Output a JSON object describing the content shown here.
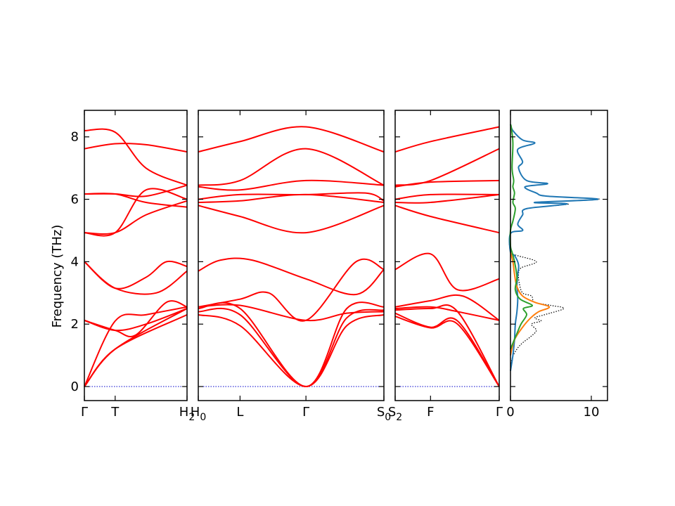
{
  "chart_data": [
    {
      "type": "line",
      "panel": "band-structure",
      "ylabel": "Frequency (THz)",
      "ylim": [
        -0.45,
        8.85
      ],
      "yticks": [
        0,
        2,
        4,
        6,
        8
      ],
      "band_color": "#ff0000",
      "zero_line_color": "#0000cc",
      "segments": [
        {
          "labels": [
            "Γ",
            "T",
            "H2"
          ],
          "label_positions": [
            0,
            0.3,
            1.0
          ],
          "xlim": [
            0,
            1
          ],
          "bands": [
            {
              "x": [
                0,
                0.3,
                1.0
              ],
              "y": [
                0,
                1.2,
                2.3
              ]
            },
            {
              "x": [
                0,
                0.3,
                1.0
              ],
              "y": [
                0,
                1.2,
                2.5
              ]
            },
            {
              "x": [
                0,
                0.3,
                0.6,
                1.0
              ],
              "y": [
                0,
                2.1,
                2.3,
                2.55
              ]
            },
            {
              "x": [
                0,
                0.3,
                0.5,
                0.8,
                1.0
              ],
              "y": [
                2.12,
                1.8,
                1.65,
                2.7,
                2.55
              ]
            },
            {
              "x": [
                0,
                0.3,
                0.6,
                1.0
              ],
              "y": [
                2.12,
                1.8,
                2.0,
                2.5
              ]
            },
            {
              "x": [
                0,
                0.3,
                0.7,
                1.0
              ],
              "y": [
                4.0,
                3.15,
                3.0,
                3.7
              ]
            },
            {
              "x": [
                0,
                0.3,
                0.6,
                0.8,
                1.0
              ],
              "y": [
                4.0,
                3.15,
                3.5,
                4.0,
                3.85
              ]
            },
            {
              "x": [
                0,
                0.3,
                0.6,
                1.0
              ],
              "y": [
                4.93,
                4.93,
                5.5,
                5.95
              ]
            },
            {
              "x": [
                0,
                0.3,
                0.6,
                1.0
              ],
              "y": [
                4.93,
                4.93,
                6.3,
                6.0
              ]
            },
            {
              "x": [
                0,
                0.3,
                0.6,
                1.0
              ],
              "y": [
                6.17,
                6.17,
                5.9,
                5.75
              ]
            },
            {
              "x": [
                0,
                0.3,
                0.6,
                1.0
              ],
              "y": [
                6.17,
                6.17,
                6.1,
                6.45
              ]
            },
            {
              "x": [
                0,
                0.3,
                0.6,
                1.0
              ],
              "y": [
                7.62,
                7.78,
                7.75,
                7.52
              ]
            },
            {
              "x": [
                0,
                0.3,
                0.6,
                1.0
              ],
              "y": [
                8.2,
                8.15,
                7.0,
                6.45
              ]
            }
          ]
        },
        {
          "labels": [
            "H0",
            "L",
            "Γ",
            "S0"
          ],
          "label_positions": [
            0,
            0.225,
            0.58,
            1.0
          ],
          "xlim": [
            0,
            1
          ],
          "bands": [
            {
              "x": [
                0,
                0.225,
                0.58,
                0.8,
                1.0
              ],
              "y": [
                2.3,
                1.95,
                0,
                1.95,
                2.3
              ]
            },
            {
              "x": [
                0,
                0.225,
                0.58,
                0.8,
                1.0
              ],
              "y": [
                2.4,
                2.3,
                0,
                2.2,
                2.45
              ]
            },
            {
              "x": [
                0,
                0.225,
                0.58,
                0.8,
                1.0
              ],
              "y": [
                2.5,
                2.5,
                0,
                2.5,
                2.55
              ]
            },
            {
              "x": [
                0,
                0.225,
                0.58,
                0.8,
                1.0
              ],
              "y": [
                2.55,
                2.6,
                2.12,
                2.35,
                2.4
              ]
            },
            {
              "x": [
                0,
                0.225,
                0.38,
                0.58,
                0.85,
                1.0
              ],
              "y": [
                2.55,
                2.8,
                3.0,
                2.12,
                4.0,
                3.75
              ]
            },
            {
              "x": [
                0,
                0.12,
                0.29,
                0.58,
                0.85,
                1.0
              ],
              "y": [
                3.7,
                4.05,
                4.05,
                3.45,
                2.95,
                3.75
              ]
            },
            {
              "x": [
                0,
                0.225,
                0.58,
                1.0
              ],
              "y": [
                5.8,
                5.45,
                4.93,
                5.8
              ]
            },
            {
              "x": [
                0,
                0.225,
                0.58,
                1.0
              ],
              "y": [
                5.9,
                5.95,
                6.15,
                5.9
              ]
            },
            {
              "x": [
                0,
                0.225,
                0.58,
                0.9,
                1.0
              ],
              "y": [
                6.0,
                6.15,
                6.15,
                6.2,
                5.95
              ]
            },
            {
              "x": [
                0,
                0.225,
                0.58,
                1.0
              ],
              "y": [
                6.4,
                6.3,
                6.6,
                6.45
              ]
            },
            {
              "x": [
                0,
                0.225,
                0.58,
                1.0
              ],
              "y": [
                6.45,
                6.6,
                7.62,
                6.45
              ]
            },
            {
              "x": [
                0,
                0.225,
                0.58,
                1.0
              ],
              "y": [
                7.52,
                7.85,
                8.32,
                7.52
              ]
            }
          ]
        },
        {
          "labels": [
            "S2",
            "F",
            "Γ"
          ],
          "label_positions": [
            0,
            0.34,
            1.0
          ],
          "xlim": [
            0,
            1
          ],
          "bands": [
            {
              "x": [
                0,
                0.34,
                0.6,
                1.0
              ],
              "y": [
                2.25,
                1.88,
                2.0,
                0
              ]
            },
            {
              "x": [
                0,
                0.34,
                0.6,
                1.0
              ],
              "y": [
                2.35,
                1.9,
                2.1,
                0
              ]
            },
            {
              "x": [
                0,
                0.34,
                0.6,
                1.0
              ],
              "y": [
                2.45,
                2.5,
                2.4,
                0
              ]
            },
            {
              "x": [
                0,
                0.34,
                0.6,
                1.0
              ],
              "y": [
                2.5,
                2.55,
                2.4,
                2.12
              ]
            },
            {
              "x": [
                0,
                0.34,
                0.65,
                1.0
              ],
              "y": [
                2.55,
                2.75,
                2.9,
                2.12
              ]
            },
            {
              "x": [
                0,
                0.34,
                0.6,
                1.0
              ],
              "y": [
                3.75,
                4.25,
                3.1,
                3.45
              ]
            },
            {
              "x": [
                0,
                0.34,
                1.0
              ],
              "y": [
                5.8,
                5.45,
                4.93
              ]
            },
            {
              "x": [
                0,
                0.34,
                1.0
              ],
              "y": [
                5.9,
                5.9,
                6.15
              ]
            },
            {
              "x": [
                0,
                0.34,
                1.0
              ],
              "y": [
                6.0,
                6.15,
                6.15
              ]
            },
            {
              "x": [
                0,
                0.34,
                1.0
              ],
              "y": [
                6.4,
                6.55,
                6.6
              ]
            },
            {
              "x": [
                0,
                0.34,
                1.0
              ],
              "y": [
                6.45,
                6.6,
                7.62
              ]
            },
            {
              "x": [
                0,
                0.34,
                1.0
              ],
              "y": [
                7.52,
                7.85,
                8.32
              ]
            }
          ]
        }
      ]
    },
    {
      "type": "line",
      "panel": "dos",
      "xlim": [
        0,
        12
      ],
      "xticks": [
        0,
        10
      ],
      "ylim": [
        -0.45,
        8.85
      ],
      "series": [
        {
          "color": "#000000",
          "style": "dotted",
          "points": [
            [
              0,
              0.5
            ],
            [
              0.2,
              0.9
            ],
            [
              0.8,
              1.2
            ],
            [
              1.5,
              1.4
            ],
            [
              2.5,
              1.6
            ],
            [
              3.2,
              1.8
            ],
            [
              2.6,
              2.0
            ],
            [
              3.8,
              2.1
            ],
            [
              3.0,
              2.2
            ],
            [
              4.2,
              2.3
            ],
            [
              6.6,
              2.5
            ],
            [
              5.0,
              2.6
            ],
            [
              3.0,
              2.7
            ],
            [
              2.6,
              2.9
            ],
            [
              1.5,
              3.0
            ],
            [
              1.1,
              3.3
            ],
            [
              1.0,
              3.6
            ],
            [
              1.3,
              3.8
            ],
            [
              3.2,
              4.0
            ],
            [
              0.8,
              4.2
            ],
            [
              0,
              4.3
            ],
            [
              0,
              4.9
            ],
            [
              1.5,
              5.0
            ],
            [
              0.9,
              5.2
            ],
            [
              1.5,
              5.5
            ],
            [
              2.0,
              5.7
            ],
            [
              7.2,
              5.85
            ],
            [
              3.0,
              5.9
            ],
            [
              11.0,
              6.0
            ],
            [
              4.5,
              6.1
            ],
            [
              3.2,
              6.2
            ],
            [
              1.8,
              6.4
            ],
            [
              4.6,
              6.5
            ],
            [
              2.0,
              6.6
            ],
            [
              1.0,
              7.0
            ],
            [
              1.5,
              7.2
            ],
            [
              0.9,
              7.6
            ],
            [
              3.0,
              7.8
            ],
            [
              1.5,
              7.9
            ],
            [
              0.3,
              8.2
            ],
            [
              0,
              8.4
            ]
          ]
        },
        {
          "color": "#1f77b4",
          "style": "solid",
          "points": [
            [
              0,
              0.5
            ],
            [
              0.3,
              1.0
            ],
            [
              0.5,
              1.5
            ],
            [
              0.6,
              2.0
            ],
            [
              0.8,
              2.4
            ],
            [
              0.9,
              2.8
            ],
            [
              0.8,
              3.2
            ],
            [
              0.9,
              3.6
            ],
            [
              1.0,
              3.9
            ],
            [
              0.5,
              4.2
            ],
            [
              0,
              4.3
            ],
            [
              0,
              4.9
            ],
            [
              1.5,
              5.0
            ],
            [
              0.9,
              5.2
            ],
            [
              1.5,
              5.5
            ],
            [
              2.0,
              5.7
            ],
            [
              7.0,
              5.85
            ],
            [
              3.0,
              5.9
            ],
            [
              10.8,
              6.0
            ],
            [
              4.5,
              6.1
            ],
            [
              3.2,
              6.2
            ],
            [
              1.8,
              6.4
            ],
            [
              4.6,
              6.5
            ],
            [
              2.0,
              6.6
            ],
            [
              1.0,
              7.0
            ],
            [
              1.5,
              7.2
            ],
            [
              0.9,
              7.6
            ],
            [
              3.0,
              7.8
            ],
            [
              1.5,
              7.9
            ],
            [
              0.3,
              8.2
            ],
            [
              0,
              8.4
            ]
          ]
        },
        {
          "color": "#ff7f0e",
          "style": "solid",
          "points": [
            [
              0,
              1.0
            ],
            [
              0.5,
              1.5
            ],
            [
              1.5,
              1.9
            ],
            [
              2.5,
              2.2
            ],
            [
              3.5,
              2.4
            ],
            [
              4.8,
              2.55
            ],
            [
              3.0,
              2.7
            ],
            [
              1.5,
              2.9
            ],
            [
              0.8,
              3.2
            ],
            [
              0.5,
              3.6
            ],
            [
              0.3,
              4.0
            ],
            [
              0,
              4.3
            ]
          ]
        },
        {
          "color": "#2ca02c",
          "style": "solid",
          "points": [
            [
              0,
              1.2
            ],
            [
              0.8,
              1.7
            ],
            [
              1.3,
              2.0
            ],
            [
              2.0,
              2.3
            ],
            [
              1.6,
              2.5
            ],
            [
              2.7,
              2.6
            ],
            [
              1.2,
              2.8
            ],
            [
              0.6,
              3.1
            ],
            [
              0.8,
              3.5
            ],
            [
              0.5,
              4.0
            ],
            [
              0.2,
              4.3
            ],
            [
              0,
              4.5
            ],
            [
              0,
              5.0
            ],
            [
              0.3,
              5.3
            ],
            [
              0.6,
              5.7
            ],
            [
              0.3,
              5.9
            ],
            [
              0.5,
              6.2
            ],
            [
              0.3,
              6.4
            ],
            [
              0.4,
              6.6
            ],
            [
              0.2,
              7.0
            ],
            [
              0.3,
              7.8
            ],
            [
              0.1,
              8.3
            ],
            [
              0,
              8.4
            ]
          ]
        }
      ]
    }
  ]
}
